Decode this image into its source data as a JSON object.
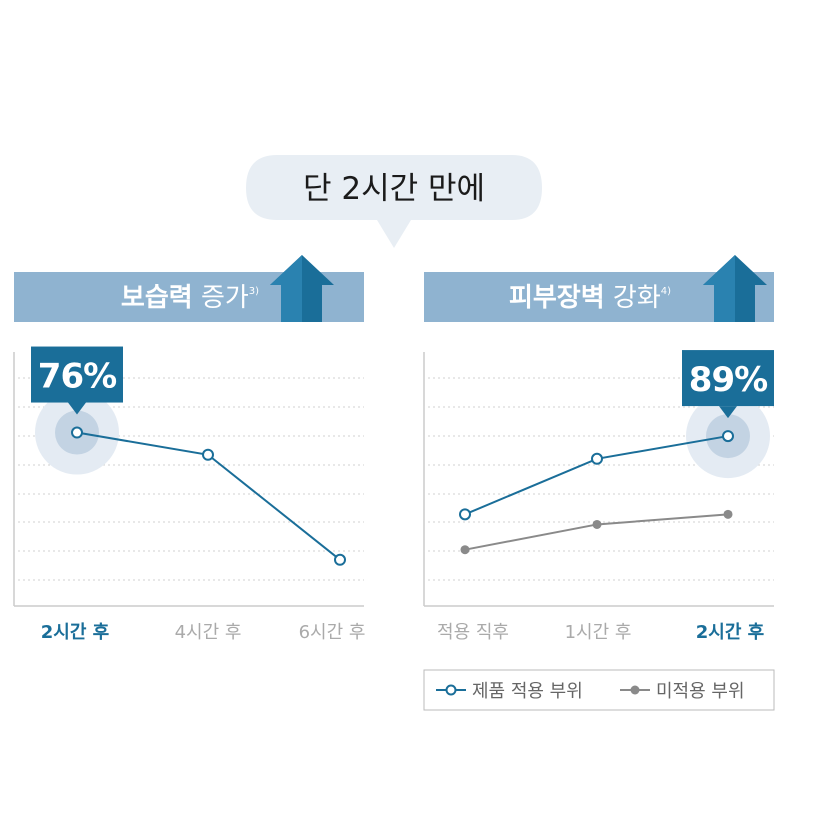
{
  "headline": "단 2시간 만에",
  "colors": {
    "primary": "#1a6e99",
    "banner": "#8fb3d0",
    "bubble": "#e8eef4",
    "gray_series": "#8a8a8a",
    "axis_text_inactive": "#aaaaaa",
    "grid": "#d0d0d0"
  },
  "left_panel": {
    "title_bold": "보습력",
    "title_rest": " 증가",
    "footnote": "3)",
    "arrow_icon": "up-arrow-icon"
  },
  "right_panel": {
    "title_bold": "피부장벽",
    "title_rest": " 강화",
    "footnote": "4)",
    "arrow_icon": "up-arrow-icon"
  },
  "chart_data": [
    {
      "type": "line",
      "categories": [
        "2시간 후",
        "4시간 후",
        "6시간 후"
      ],
      "highlight_index": 0,
      "callout": "76%",
      "series": [
        {
          "values": [
            7.3,
            6.2,
            1.0
          ]
        }
      ],
      "ylim": [
        0,
        10
      ],
      "grid": true
    },
    {
      "type": "line",
      "categories": [
        "적용 직후",
        "1시간 후",
        "2시간 후"
      ],
      "highlight_index": 2,
      "callout": "89%",
      "series": [
        {
          "name": "제품 적용 부위",
          "values": [
            2.6,
            4.8,
            5.7
          ],
          "marker": "open-circle"
        },
        {
          "name": "미적용 부위",
          "values": [
            1.2,
            2.2,
            2.6
          ],
          "marker": "filled-circle"
        }
      ],
      "ylim": [
        0,
        8
      ],
      "grid": true,
      "legend": "bottom"
    }
  ]
}
